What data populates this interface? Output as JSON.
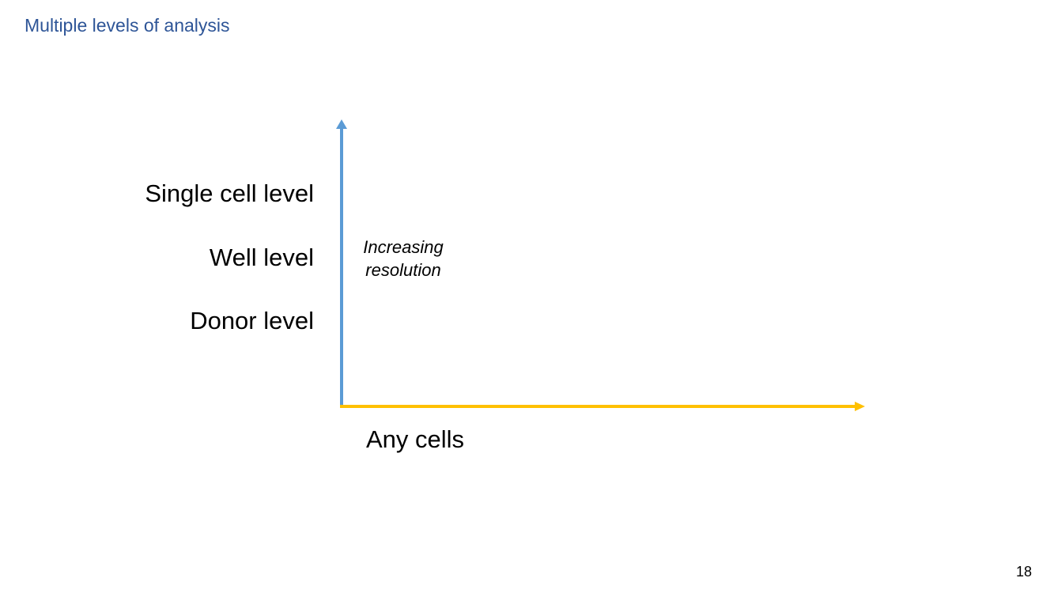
{
  "slide": {
    "title": "Multiple levels of analysis",
    "page_number": "18"
  },
  "diagram": {
    "y_axis": {
      "color": "#5b9bd5",
      "direction": "up",
      "note_lines": [
        "Increasing",
        "resolution"
      ]
    },
    "x_axis": {
      "color": "#ffc000",
      "direction": "right",
      "label": "Any cells"
    },
    "levels": [
      "Single cell level",
      "Well level",
      "Donor level"
    ]
  },
  "colors": {
    "title": "#2e5597",
    "text": "#000000",
    "background": "#ffffff"
  }
}
